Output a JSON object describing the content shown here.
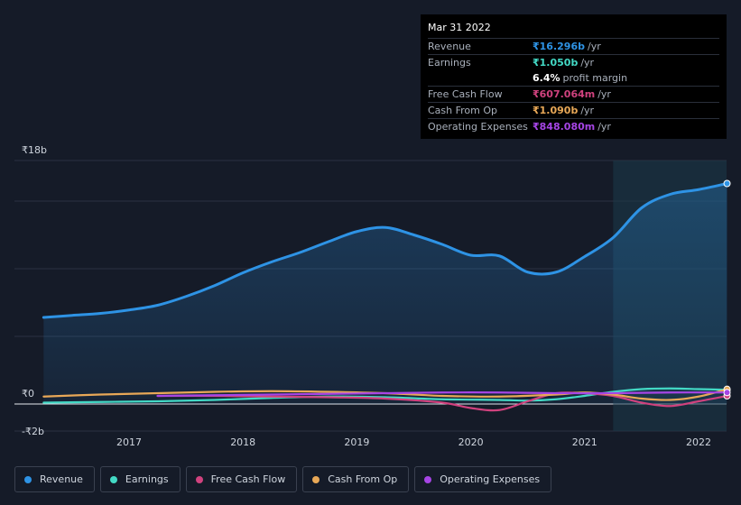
{
  "tooltip": {
    "date": "Mar 31 2022",
    "rows": [
      {
        "label": "Revenue",
        "value": "₹16.296b",
        "unit": "/yr",
        "color": "#2e93e5"
      },
      {
        "label": "Earnings",
        "value": "₹1.050b",
        "unit": "/yr",
        "color": "#43d9c5"
      },
      {
        "label": "",
        "value": "6.4%",
        "unit": "profit margin",
        "color": "#ffffff"
      },
      {
        "label": "Free Cash Flow",
        "value": "₹607.064m",
        "unit": "/yr",
        "color": "#d0427e"
      },
      {
        "label": "Cash From Op",
        "value": "₹1.090b",
        "unit": "/yr",
        "color": "#e8a857"
      },
      {
        "label": "Operating Expenses",
        "value": "₹848.080m",
        "unit": "/yr",
        "color": "#a645e5"
      }
    ]
  },
  "legend": [
    {
      "label": "Revenue",
      "color": "#2e93e5"
    },
    {
      "label": "Earnings",
      "color": "#43d9c5"
    },
    {
      "label": "Free Cash Flow",
      "color": "#d0427e"
    },
    {
      "label": "Cash From Op",
      "color": "#e8a857"
    },
    {
      "label": "Operating Expenses",
      "color": "#a645e5"
    }
  ],
  "chart_data": {
    "type": "area",
    "ylim": [
      -2,
      18
    ],
    "y_tick_labels": [
      {
        "value": 18,
        "label": "₹18b"
      },
      {
        "value": 0,
        "label": "₹0"
      },
      {
        "value": -2,
        "label": "-₹2b"
      }
    ],
    "x_ticks": [
      2017,
      2018,
      2019,
      2020,
      2021,
      2022
    ],
    "xlim": [
      2016.0,
      2022.3
    ],
    "highlight_from": 2021.25,
    "series": [
      {
        "name": "Revenue",
        "color": "#2e93e5",
        "filled": true,
        "points": [
          [
            2016.25,
            6.4
          ],
          [
            2016.5,
            6.55
          ],
          [
            2016.75,
            6.7
          ],
          [
            2017.0,
            6.95
          ],
          [
            2017.25,
            7.3
          ],
          [
            2017.5,
            7.95
          ],
          [
            2017.75,
            8.75
          ],
          [
            2018.0,
            9.7
          ],
          [
            2018.25,
            10.5
          ],
          [
            2018.5,
            11.2
          ],
          [
            2018.75,
            12.0
          ],
          [
            2019.0,
            12.75
          ],
          [
            2019.25,
            13.05
          ],
          [
            2019.5,
            12.5
          ],
          [
            2019.75,
            11.8
          ],
          [
            2020.0,
            11.0
          ],
          [
            2020.25,
            10.95
          ],
          [
            2020.5,
            9.75
          ],
          [
            2020.75,
            9.75
          ],
          [
            2021.0,
            10.9
          ],
          [
            2021.25,
            12.3
          ],
          [
            2021.5,
            14.5
          ],
          [
            2021.75,
            15.5
          ],
          [
            2022.0,
            15.85
          ],
          [
            2022.25,
            16.3
          ]
        ]
      },
      {
        "name": "Earnings",
        "color": "#43d9c5",
        "filled": false,
        "points": [
          [
            2016.25,
            0.1
          ],
          [
            2016.75,
            0.15
          ],
          [
            2017.25,
            0.2
          ],
          [
            2017.75,
            0.3
          ],
          [
            2018.25,
            0.45
          ],
          [
            2018.75,
            0.55
          ],
          [
            2019.25,
            0.5
          ],
          [
            2019.75,
            0.35
          ],
          [
            2020.25,
            0.3
          ],
          [
            2020.5,
            0.25
          ],
          [
            2020.75,
            0.35
          ],
          [
            2021.0,
            0.6
          ],
          [
            2021.25,
            0.9
          ],
          [
            2021.5,
            1.1
          ],
          [
            2021.75,
            1.15
          ],
          [
            2022.0,
            1.1
          ],
          [
            2022.25,
            1.05
          ]
        ]
      },
      {
        "name": "Free Cash Flow",
        "color": "#d0427e",
        "filled": false,
        "points": [
          [
            2017.25,
            0.6
          ],
          [
            2017.75,
            0.6
          ],
          [
            2018.25,
            0.55
          ],
          [
            2018.75,
            0.5
          ],
          [
            2019.25,
            0.4
          ],
          [
            2019.75,
            0.1
          ],
          [
            2020.0,
            -0.3
          ],
          [
            2020.25,
            -0.45
          ],
          [
            2020.5,
            0.2
          ],
          [
            2020.75,
            0.8
          ],
          [
            2021.0,
            0.8
          ],
          [
            2021.25,
            0.6
          ],
          [
            2021.5,
            0.1
          ],
          [
            2021.75,
            -0.15
          ],
          [
            2022.0,
            0.2
          ],
          [
            2022.25,
            0.6
          ]
        ]
      },
      {
        "name": "Cash From Op",
        "color": "#e8a857",
        "filled": false,
        "points": [
          [
            2016.25,
            0.55
          ],
          [
            2016.75,
            0.7
          ],
          [
            2017.25,
            0.8
          ],
          [
            2017.75,
            0.9
          ],
          [
            2018.25,
            0.95
          ],
          [
            2018.75,
            0.9
          ],
          [
            2019.25,
            0.8
          ],
          [
            2019.75,
            0.6
          ],
          [
            2020.25,
            0.55
          ],
          [
            2020.75,
            0.7
          ],
          [
            2021.0,
            0.85
          ],
          [
            2021.25,
            0.7
          ],
          [
            2021.5,
            0.4
          ],
          [
            2021.75,
            0.3
          ],
          [
            2022.0,
            0.55
          ],
          [
            2022.25,
            1.09
          ]
        ]
      },
      {
        "name": "Operating Expenses",
        "color": "#a645e5",
        "filled": false,
        "points": [
          [
            2017.25,
            0.6
          ],
          [
            2017.75,
            0.65
          ],
          [
            2018.25,
            0.7
          ],
          [
            2018.75,
            0.75
          ],
          [
            2019.25,
            0.8
          ],
          [
            2019.75,
            0.85
          ],
          [
            2020.25,
            0.85
          ],
          [
            2020.75,
            0.8
          ],
          [
            2021.25,
            0.8
          ],
          [
            2021.75,
            0.85
          ],
          [
            2022.25,
            0.85
          ]
        ]
      }
    ]
  }
}
